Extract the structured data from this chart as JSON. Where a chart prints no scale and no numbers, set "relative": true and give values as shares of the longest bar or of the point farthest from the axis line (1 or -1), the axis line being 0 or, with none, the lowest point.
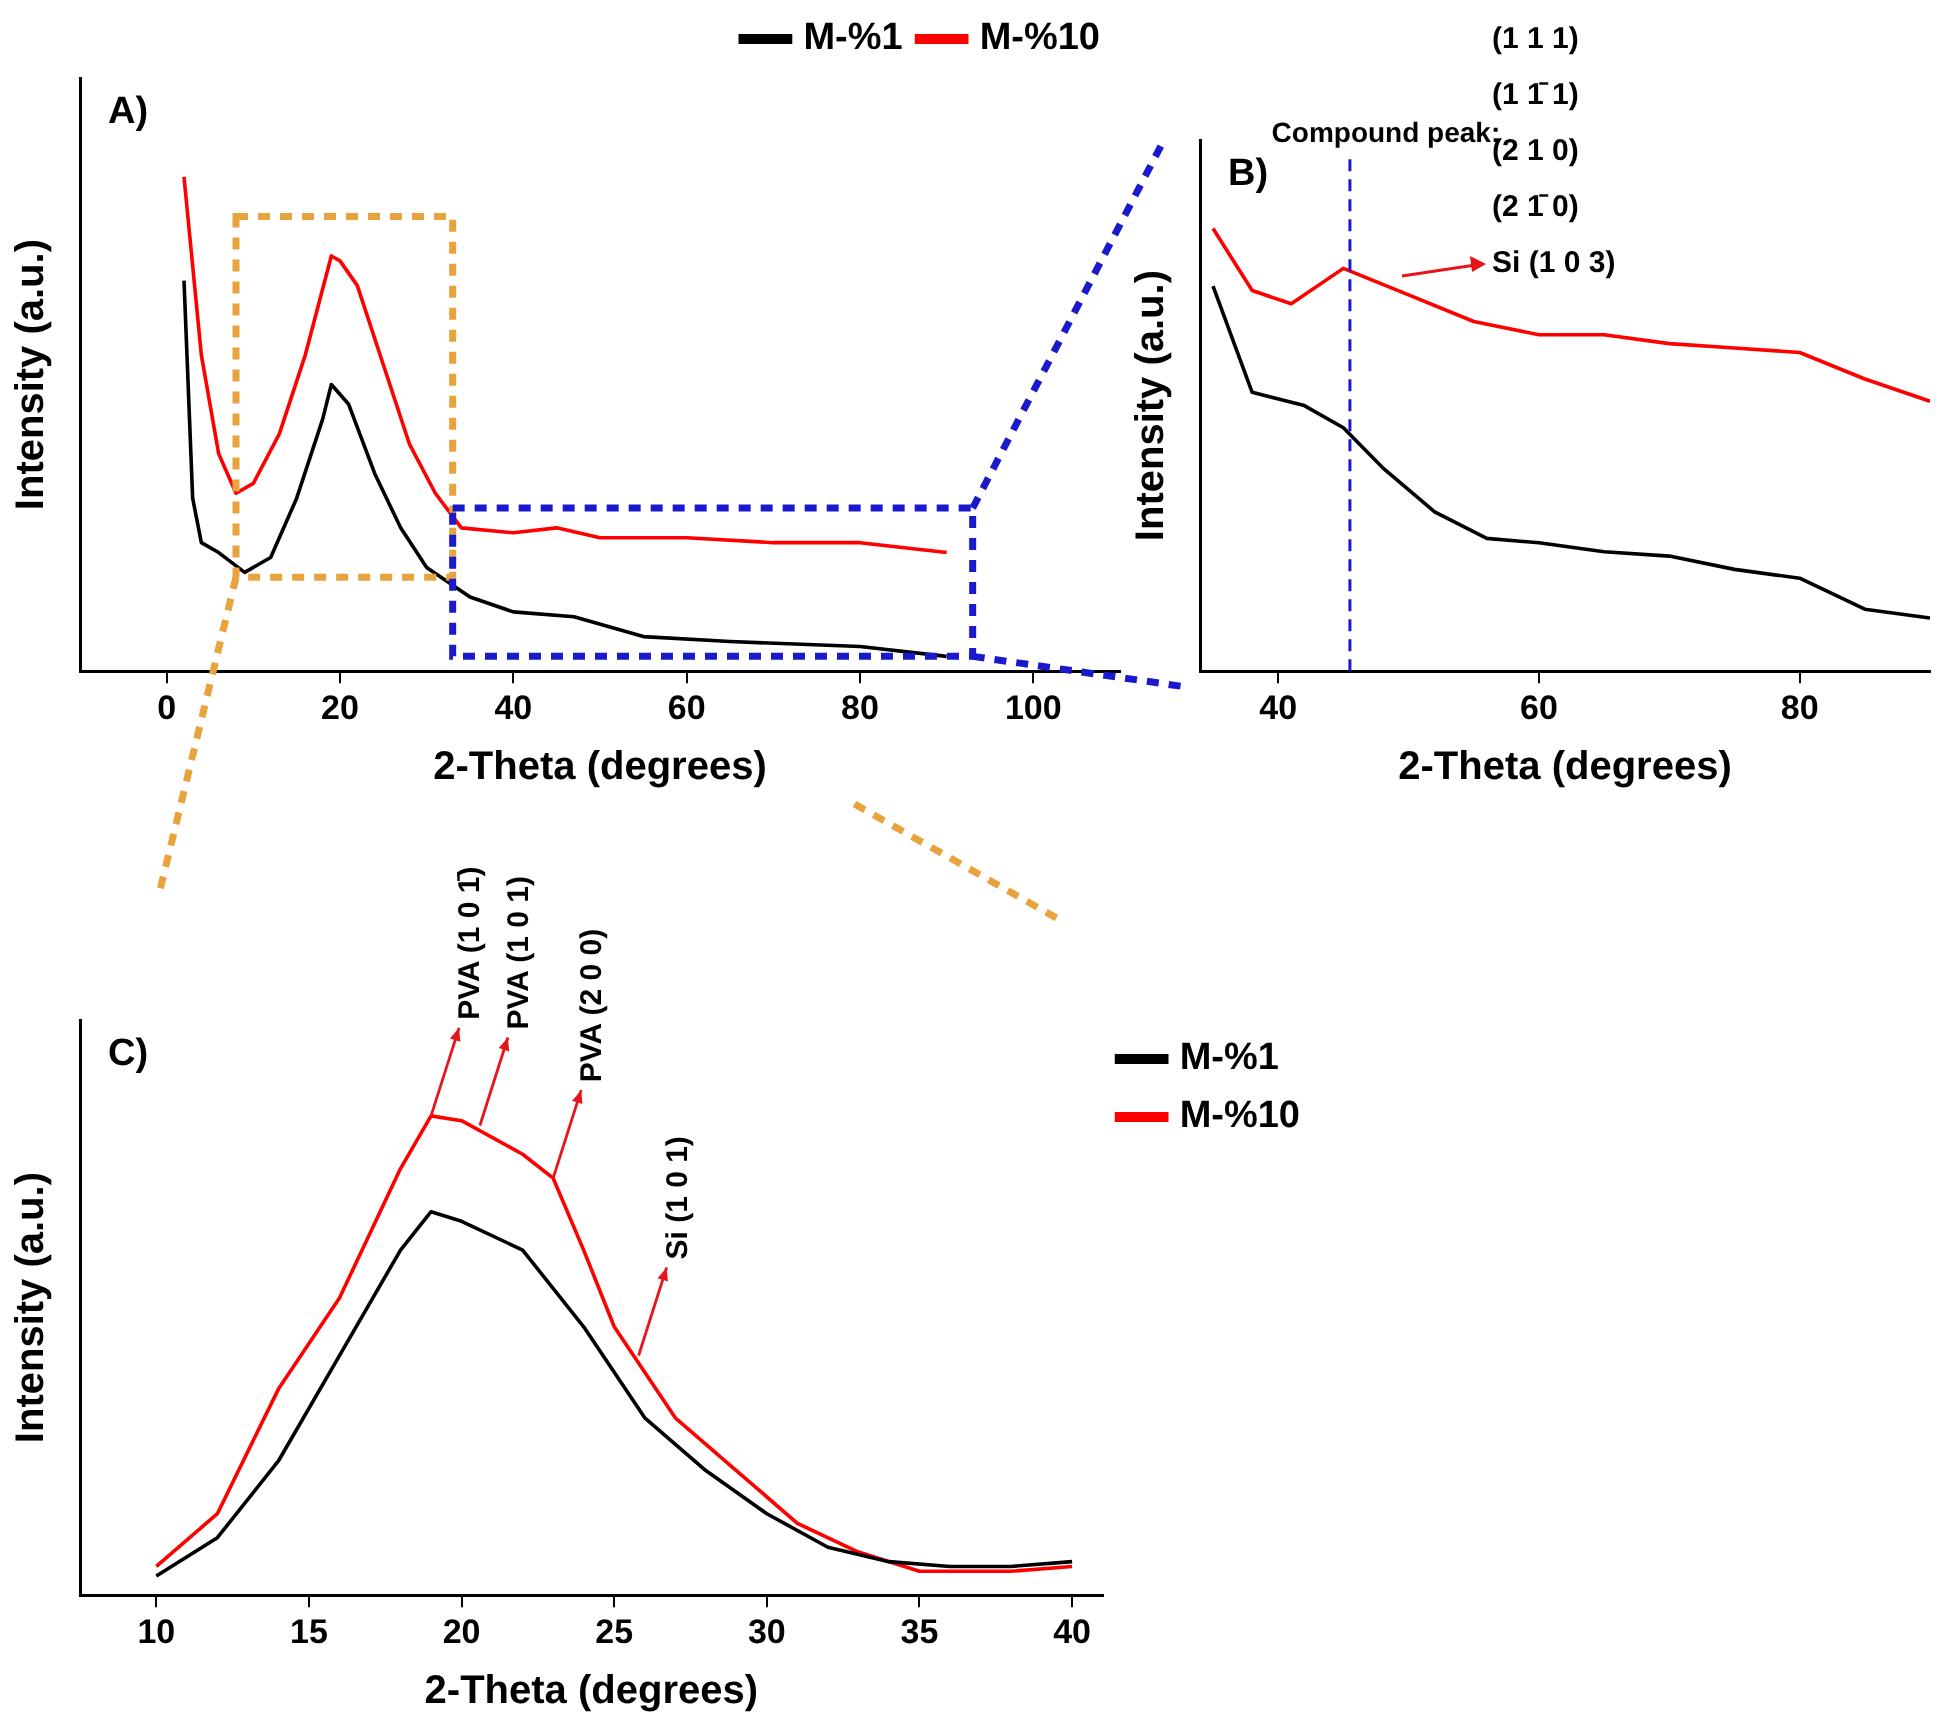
{
  "chart_data": [
    {
      "type": "line",
      "title": "A)",
      "xlabel": "2-Theta (degrees)",
      "ylabel": "Intensity (a.u.)",
      "relative": true,
      "xlim": [
        -10,
        110
      ],
      "xticks": [
        0,
        20,
        40,
        60,
        80,
        100
      ],
      "grid": false,
      "legend": "top right",
      "marker": "none",
      "line_style": "solid",
      "series": [
        {
          "name": "M-%1",
          "color": "#000000",
          "x": [
            2,
            3,
            4,
            6,
            9,
            12,
            15,
            18,
            19,
            21,
            24,
            27,
            30,
            35,
            40,
            47,
            55,
            65,
            80,
            90
          ],
          "values": [
            0.79,
            0.35,
            0.26,
            0.24,
            0.2,
            0.23,
            0.35,
            0.51,
            0.58,
            0.54,
            0.4,
            0.29,
            0.21,
            0.15,
            0.12,
            0.11,
            0.07,
            0.06,
            0.05,
            0.03
          ]
        },
        {
          "name": "M-%10",
          "color": "#ff0000",
          "x": [
            2,
            4,
            6,
            8,
            10,
            13,
            16,
            19,
            20,
            22,
            25,
            28,
            31,
            34,
            40,
            45,
            50,
            60,
            70,
            80,
            90
          ],
          "values": [
            1,
            0.64,
            0.44,
            0.36,
            0.38,
            0.48,
            0.64,
            0.84,
            0.83,
            0.78,
            0.62,
            0.46,
            0.36,
            0.29,
            0.28,
            0.29,
            0.27,
            0.27,
            0.26,
            0.26,
            0.24
          ]
        }
      ]
    },
    {
      "type": "line",
      "title": "B)",
      "xlabel": "2-Theta (degrees)",
      "ylabel": "Intensity (a.u.)",
      "relative": true,
      "xlim": [
        34,
        90
      ],
      "xticks": [
        40,
        60,
        80
      ],
      "grid": false,
      "legend": false,
      "marker": "none",
      "line_style": "solid",
      "ref_lines": [
        {
          "axis": "x",
          "value": 45.5,
          "label": "Compound peak:",
          "color": "#1a1acc",
          "line_style": "dashed"
        }
      ],
      "annotations": [
        "(1 1 1)",
        "(1 1̄ 1)",
        "(2 1 0)",
        "(2 1̄ 0)",
        "Si (1 0 3)"
      ],
      "series": [
        {
          "color": "#000000",
          "x": [
            35,
            38,
            42,
            45,
            48,
            52,
            56,
            60,
            65,
            70,
            75,
            80,
            85,
            90
          ],
          "values": [
            0.87,
            0.63,
            0.6,
            0.55,
            0.46,
            0.36,
            0.3,
            0.29,
            0.27,
            0.26,
            0.23,
            0.21,
            0.14,
            0.12
          ]
        },
        {
          "color": "#ff0000",
          "x": [
            35,
            38,
            41,
            45,
            50,
            55,
            60,
            65,
            70,
            75,
            80,
            85,
            90
          ],
          "values": [
            1,
            0.86,
            0.83,
            0.91,
            0.85,
            0.79,
            0.76,
            0.76,
            0.74,
            0.73,
            0.72,
            0.66,
            0.61
          ]
        }
      ]
    },
    {
      "type": "line",
      "title": "C)",
      "xlabel": "2-Theta (degrees)",
      "ylabel": "Intensity (a.u.)",
      "relative": true,
      "xlim": [
        7.5,
        41
      ],
      "xticks": [
        10,
        15,
        20,
        25,
        30,
        35,
        40
      ],
      "grid": false,
      "legend": "right",
      "marker": "none",
      "line_style": "solid",
      "annotations": [
        {
          "text": "PVA (1 0 1̄)",
          "x": 19,
          "y": 1
        },
        {
          "text": "PVA (1 0 1)",
          "x": 20.6,
          "y": 0.98
        },
        {
          "text": "PVA (2 0 0)",
          "x": 23,
          "y": 0.87
        },
        {
          "text": "Si (1 0 1)",
          "x": 25.8,
          "y": 0.5
        }
      ],
      "series": [
        {
          "name": "M-%1",
          "color": "#000000",
          "x": [
            10,
            12,
            14,
            16,
            18,
            19,
            20,
            22,
            24,
            26,
            28,
            30,
            32,
            34,
            36,
            38,
            40
          ],
          "values": [
            0.04,
            0.12,
            0.28,
            0.5,
            0.72,
            0.8,
            0.78,
            0.72,
            0.56,
            0.37,
            0.26,
            0.17,
            0.1,
            0.07,
            0.06,
            0.06,
            0.07
          ]
        },
        {
          "name": "M-%10",
          "color": "#ff0000",
          "x": [
            10,
            12,
            14,
            16,
            18,
            19,
            20,
            22,
            23,
            24,
            25,
            27,
            29,
            31,
            33,
            35,
            38,
            40
          ],
          "values": [
            0.06,
            0.17,
            0.43,
            0.62,
            0.89,
            1,
            0.99,
            0.92,
            0.87,
            0.72,
            0.56,
            0.37,
            0.26,
            0.15,
            0.09,
            0.05,
            0.05,
            0.06
          ]
        }
      ]
    }
  ]
}
